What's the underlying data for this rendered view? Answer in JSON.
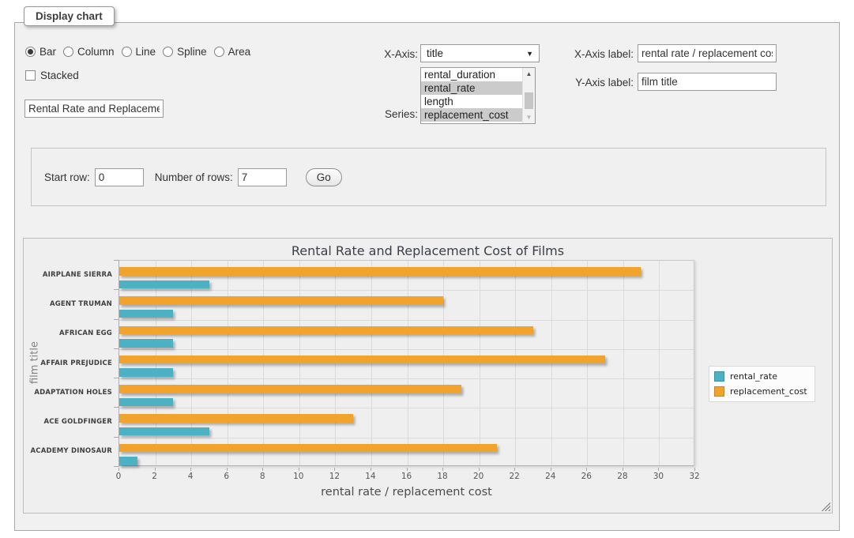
{
  "panel": {
    "tab_title": "Display chart",
    "chart_types": [
      "Bar",
      "Column",
      "Line",
      "Spline",
      "Area"
    ],
    "selected_type": "Bar",
    "stacked_label": "Stacked",
    "title_input_value": "Rental Rate and Replacement Cost of Films",
    "xaxis_caption": "X-Axis:",
    "xaxis_select_value": "title",
    "series_caption": "Series:",
    "series_options": [
      {
        "label": "rental_duration",
        "selected": false
      },
      {
        "label": "rental_rate",
        "selected": true
      },
      {
        "label": "length",
        "selected": false
      },
      {
        "label": "replacement_cost",
        "selected": true
      }
    ],
    "xaxis_label_caption": "X-Axis label:",
    "xaxis_label_value": "rental rate / replacement cost",
    "yaxis_label_caption": "Y-Axis label:",
    "yaxis_label_value": "film title"
  },
  "row_controls": {
    "start_row_label": "Start row:",
    "start_row_value": "0",
    "num_rows_label": "Number of rows:",
    "num_rows_value": "7",
    "go_label": "Go"
  },
  "chart_data": {
    "type": "bar",
    "orientation": "horizontal",
    "title": "Rental Rate and Replacement Cost of Films",
    "xlabel": "rental rate / replacement cost",
    "ylabel": "film title",
    "categories": [
      "AIRPLANE SIERRA",
      "AGENT TRUMAN",
      "AFRICAN EGG",
      "AFFAIR PREJUDICE",
      "ADAPTATION HOLES",
      "ACE GOLDFINGER",
      "ACADEMY DINOSAUR"
    ],
    "series": [
      {
        "name": "rental_rate",
        "color": "#4db1c4",
        "values": [
          4.99,
          2.99,
          2.99,
          2.99,
          2.99,
          4.99,
          0.99
        ]
      },
      {
        "name": "replacement_cost",
        "color": "#f0a42e",
        "values": [
          28.99,
          17.99,
          22.99,
          26.99,
          18.99,
          12.99,
          20.99
        ]
      }
    ],
    "xlim": [
      0,
      32
    ],
    "xticks": [
      0,
      2,
      4,
      6,
      8,
      10,
      12,
      14,
      16,
      18,
      20,
      22,
      24,
      26,
      28,
      30,
      32
    ],
    "grid": true,
    "legend_position": "right",
    "grid_color": "#dadada",
    "background_color": "#efefef"
  }
}
